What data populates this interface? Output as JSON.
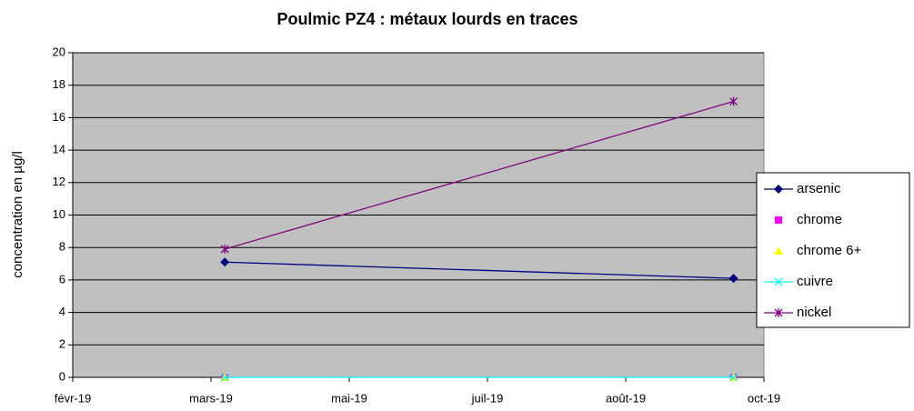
{
  "chart_data": {
    "type": "line",
    "title": "Poulmic PZ4 : métaux lourds en traces",
    "y_label": "concentration en µg/l",
    "x": [
      43552,
      43736
    ],
    "xlim": [
      43497,
      43747
    ],
    "xticks": [
      {
        "value": 43497,
        "label": "févr-19"
      },
      {
        "value": 43547,
        "label": "mars-19"
      },
      {
        "value": 43597,
        "label": "mai-19"
      },
      {
        "value": 43647,
        "label": "juil-19"
      },
      {
        "value": 43697,
        "label": "août-19"
      },
      {
        "value": 43747,
        "label": "oct-19"
      }
    ],
    "ylim": [
      0,
      20
    ],
    "yticks": [
      0,
      2,
      4,
      6,
      8,
      10,
      12,
      14,
      16,
      18,
      20
    ],
    "grid": true,
    "legend": "right",
    "series": [
      {
        "name": "arsenic",
        "color": "#000080",
        "marker": "diamond",
        "line": true,
        "values": [
          7.1,
          6.1
        ]
      },
      {
        "name": "chrome",
        "color": "#ff00ff",
        "marker": "square",
        "line": false,
        "values": [
          0,
          0
        ]
      },
      {
        "name": "chrome 6+",
        "color": "#ffff00",
        "marker": "triangle",
        "line": false,
        "values": [
          0,
          0
        ]
      },
      {
        "name": "cuivre",
        "color": "#00ffff",
        "marker": "x",
        "line": true,
        "values": [
          0,
          0
        ]
      },
      {
        "name": "nickel",
        "color": "#800080",
        "marker": "star",
        "line": true,
        "values": [
          7.9,
          17.0
        ]
      }
    ]
  }
}
